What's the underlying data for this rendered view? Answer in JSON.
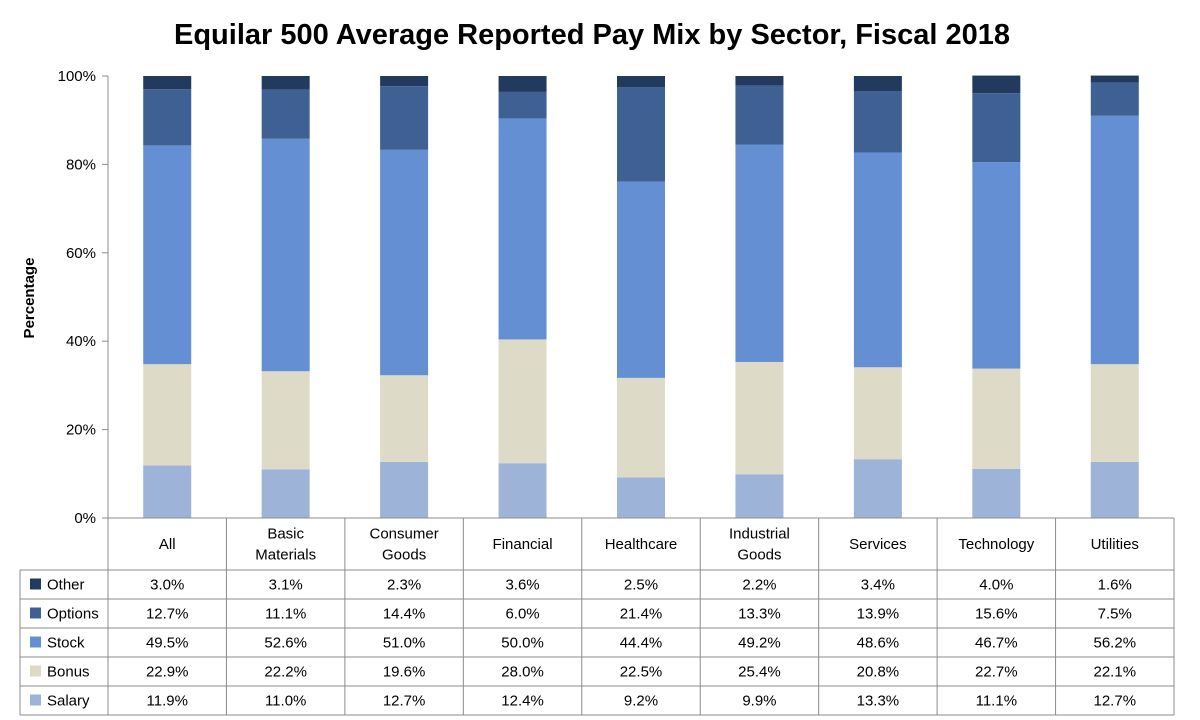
{
  "chart_data": {
    "type": "bar",
    "stacked": true,
    "title": "Equilar 500 Average Reported Pay Mix by Sector, Fiscal 2018",
    "xlabel": "",
    "ylabel": "Percentage",
    "ylim": [
      0,
      100
    ],
    "yticks": [
      "0%",
      "20%",
      "40%",
      "60%",
      "80%",
      "100%"
    ],
    "grid": false,
    "legend": "data-table-left",
    "categories": [
      "All",
      "Basic Materials",
      "Consumer Goods",
      "Financial",
      "Healthcare",
      "Industrial Goods",
      "Services",
      "Technology",
      "Utilities"
    ],
    "category_lines": [
      [
        "All"
      ],
      [
        "Basic",
        "Materials"
      ],
      [
        "Consumer",
        "Goods"
      ],
      [
        "Financial"
      ],
      [
        "Healthcare"
      ],
      [
        "Industrial",
        "Goods"
      ],
      [
        "Services"
      ],
      [
        "Technology"
      ],
      [
        "Utilities"
      ]
    ],
    "series": [
      {
        "name": "Salary",
        "color": "#9db3d8",
        "values": [
          11.9,
          11.0,
          12.7,
          12.4,
          9.2,
          9.9,
          13.3,
          11.1,
          12.7
        ],
        "labels": [
          "11.9%",
          "11.0%",
          "12.7%",
          "12.4%",
          "9.2%",
          "9.9%",
          "13.3%",
          "11.1%",
          "12.7%"
        ]
      },
      {
        "name": "Bonus",
        "color": "#dddbc8",
        "values": [
          22.9,
          22.2,
          19.6,
          28.0,
          22.5,
          25.4,
          20.8,
          22.7,
          22.1
        ],
        "labels": [
          "22.9%",
          "22.2%",
          "19.6%",
          "28.0%",
          "22.5%",
          "25.4%",
          "20.8%",
          "22.7%",
          "22.1%"
        ]
      },
      {
        "name": "Stock",
        "color": "#6490d3",
        "values": [
          49.5,
          52.6,
          51.0,
          50.0,
          44.4,
          49.2,
          48.6,
          46.7,
          56.2
        ],
        "labels": [
          "49.5%",
          "52.6%",
          "51.0%",
          "50.0%",
          "44.4%",
          "49.2%",
          "48.6%",
          "46.7%",
          "56.2%"
        ]
      },
      {
        "name": "Options",
        "color": "#3f6092",
        "values": [
          12.7,
          11.1,
          14.4,
          6.0,
          21.4,
          13.3,
          13.9,
          15.6,
          7.5
        ],
        "labels": [
          "12.7%",
          "11.1%",
          "14.4%",
          "6.0%",
          "21.4%",
          "13.3%",
          "13.9%",
          "15.6%",
          "7.5%"
        ]
      },
      {
        "name": "Other",
        "color": "#213a5e",
        "values": [
          3.0,
          3.1,
          2.3,
          3.6,
          2.5,
          2.2,
          3.4,
          4.0,
          1.6
        ],
        "labels": [
          "3.0%",
          "3.1%",
          "2.3%",
          "3.6%",
          "2.5%",
          "2.2%",
          "3.4%",
          "4.0%",
          "1.6%"
        ]
      }
    ],
    "table_row_order": [
      "Other",
      "Options",
      "Stock",
      "Bonus",
      "Salary"
    ]
  }
}
